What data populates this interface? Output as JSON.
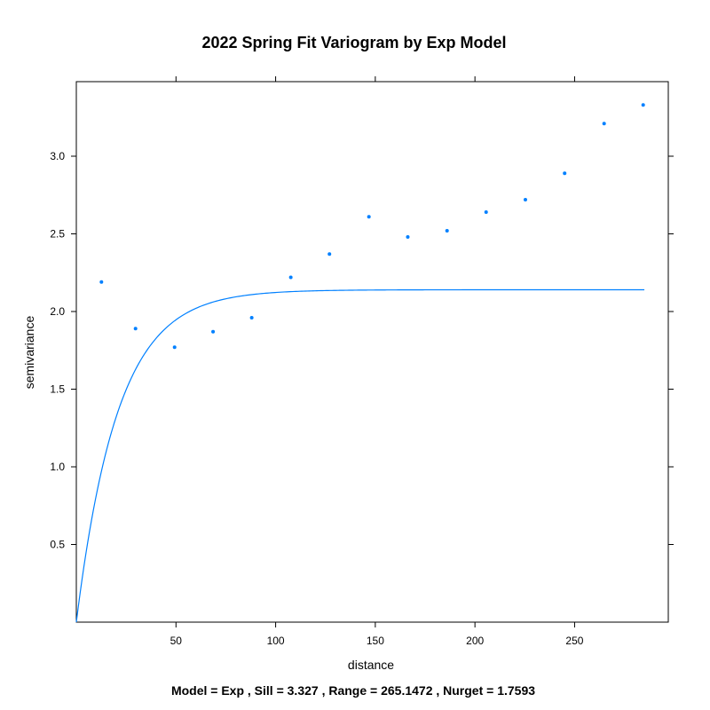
{
  "chart_data": {
    "type": "scatter",
    "title": "2022 Spring Fit Variogram by Exp Model",
    "xlabel": "distance",
    "ylabel": "semivariance",
    "footer": "Model = Exp , Sill = 3.327 , Range = 265.1472 , Nurget = 1.7593",
    "xlim": [
      0,
      297
    ],
    "ylim": [
      0,
      3.48
    ],
    "x_ticks": [
      50,
      100,
      150,
      200,
      250
    ],
    "x_tick_labels": [
      "50",
      "100",
      "150",
      "200",
      "250"
    ],
    "y_ticks": [
      0.5,
      1.0,
      1.5,
      2.0,
      2.5,
      3.0
    ],
    "y_tick_labels": [
      "0.5",
      "1.0",
      "1.5",
      "2.0",
      "2.5",
      "3.0"
    ],
    "grid": false,
    "colors": {
      "points": "#0080FF",
      "line": "#0080FF"
    },
    "series": [
      {
        "type": "scatter",
        "x": [
          12.6,
          29.7,
          49.3,
          68.6,
          88.0,
          107.6,
          127.0,
          146.8,
          166.3,
          186.0,
          205.6,
          225.3,
          245.0,
          264.8,
          284.4
        ],
        "y": [
          2.19,
          1.89,
          1.77,
          1.87,
          1.96,
          2.22,
          2.37,
          2.61,
          2.48,
          2.52,
          2.64,
          2.72,
          2.89,
          3.21,
          3.33
        ]
      },
      {
        "type": "line",
        "model": "exponential",
        "nugget": 0,
        "psill": 2.14,
        "range": 20.8,
        "x_range": [
          0,
          285
        ]
      }
    ]
  }
}
